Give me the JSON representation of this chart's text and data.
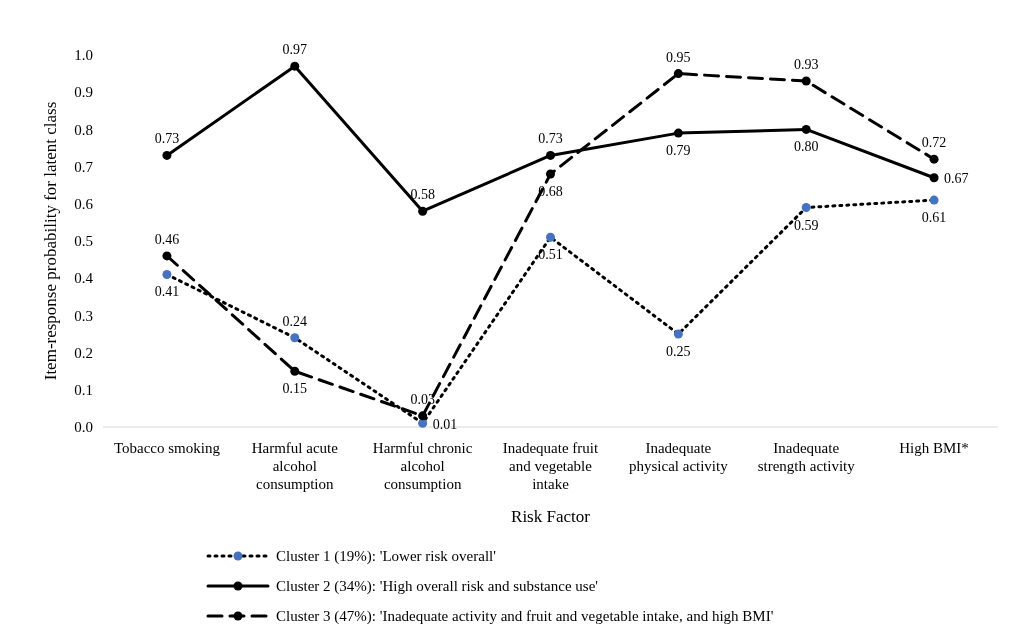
{
  "chart_data": {
    "type": "line",
    "xlabel": "Risk Factor",
    "ylabel": "Item-response probability for latent class",
    "categories": [
      "Tobacco smoking",
      "Harmful acute alcohol consumption",
      "Harmful chronic alcohol consumption",
      "Inadequate fruit and vegetable intake",
      "Inadequate physical activity",
      "Inadequate strength activity",
      "High BMI*"
    ],
    "ylim": [
      0,
      1
    ],
    "yticks": [
      {
        "value": 0,
        "label": "0.0"
      },
      {
        "value": 0.1,
        "label": "0.1"
      },
      {
        "value": 0.2,
        "label": "0.2"
      },
      {
        "value": 0.3,
        "label": "0.3"
      },
      {
        "value": 0.4,
        "label": "0.4"
      },
      {
        "value": 0.5,
        "label": "0.5"
      },
      {
        "value": 0.6,
        "label": "0.6"
      },
      {
        "value": 0.7,
        "label": "0.7"
      },
      {
        "value": 0.8,
        "label": "0.8"
      },
      {
        "value": 0.9,
        "label": "0.9"
      },
      {
        "value": 1,
        "label": "1.0"
      }
    ],
    "grid": false,
    "legend": "bottom",
    "marker": "circle",
    "series": [
      {
        "name": "Cluster 1 (19%): 'Lower risk overall'",
        "color": "#4472c4",
        "line_style": "dotted",
        "values": [
          0.41,
          0.24,
          0.01,
          0.51,
          0.25,
          0.59,
          0.61
        ],
        "value_labels": [
          "0.41",
          "0.24",
          "0.01",
          "0.51",
          "0.25",
          "0.59",
          "0.61"
        ]
      },
      {
        "name": "Cluster 2 (34%): 'High overall risk and substance use'",
        "color": "#000000",
        "line_style": "solid",
        "values": [
          0.73,
          0.97,
          0.58,
          0.73,
          0.79,
          0.8,
          0.67
        ],
        "value_labels": [
          "0.73",
          "0.97",
          "0.58",
          "0.73",
          "0.79",
          "0.80",
          "0.67"
        ]
      },
      {
        "name": "Cluster 3 (47%): 'Inadequate activity and fruit and vegetable intake, and high BMI'",
        "color": "#000000",
        "line_style": "dashed",
        "values": [
          0.46,
          0.15,
          0.03,
          0.68,
          0.95,
          0.93,
          0.72
        ],
        "value_labels": [
          "0.46",
          "0.15",
          "0.03",
          "0.68",
          "0.95",
          "0.93",
          "0.72"
        ]
      }
    ]
  }
}
